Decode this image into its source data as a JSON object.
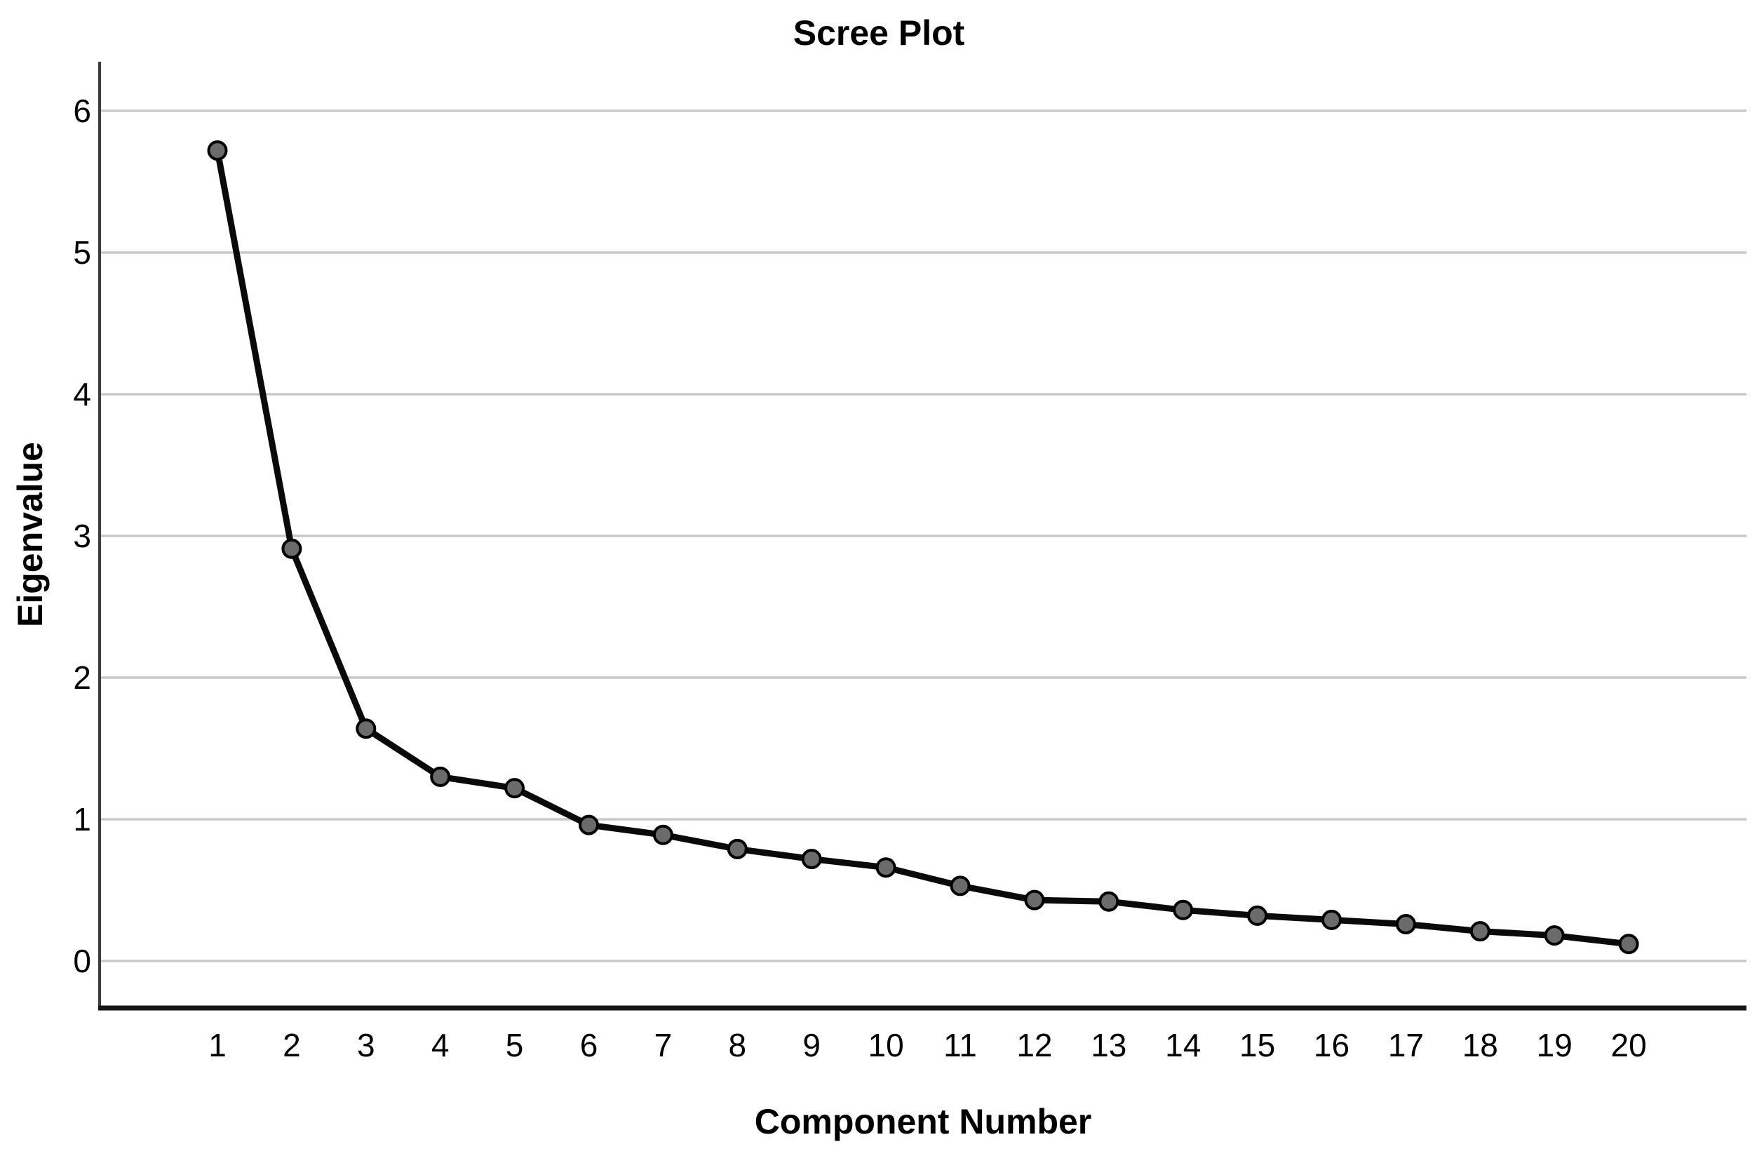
{
  "page": {
    "background": "#ffffff"
  },
  "chart_data": {
    "type": "line",
    "title": "Scree Plot",
    "xlabel": "Component Number",
    "ylabel": "Eigenvalue",
    "categories": [
      "1",
      "2",
      "3",
      "4",
      "5",
      "6",
      "7",
      "8",
      "9",
      "10",
      "11",
      "12",
      "13",
      "14",
      "15",
      "16",
      "17",
      "18",
      "19",
      "20"
    ],
    "series": [
      {
        "name": "Eigenvalue",
        "values": [
          5.72,
          2.91,
          1.64,
          1.3,
          1.22,
          0.96,
          0.89,
          0.79,
          0.72,
          0.66,
          0.53,
          0.43,
          0.42,
          0.36,
          0.32,
          0.29,
          0.26,
          0.21,
          0.18,
          0.12
        ]
      }
    ],
    "y_ticks": [
      0,
      1,
      2,
      3,
      4,
      5,
      6
    ],
    "ylim": [
      -0.33,
      6.35
    ],
    "xlim": [
      0.4,
      21.6
    ],
    "grid": "horizontal-only",
    "legend": "none",
    "marker": "filled-circle",
    "colors": {
      "line": "#0a0a0a",
      "marker_fill": "#6b6b6b",
      "marker_stroke": "#000000",
      "gridline": "#c9c9c9",
      "axis_y": "#3c3c3c",
      "axis_x": "#161616",
      "text": "#000000",
      "background": "#ffffff"
    }
  }
}
